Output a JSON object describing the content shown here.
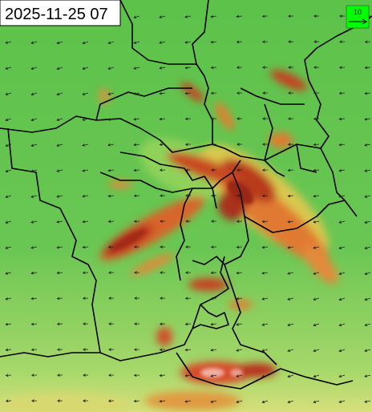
{
  "map": {
    "timestamp": "2025-11-25 07",
    "legend": {
      "label": "10"
    }
  }
}
